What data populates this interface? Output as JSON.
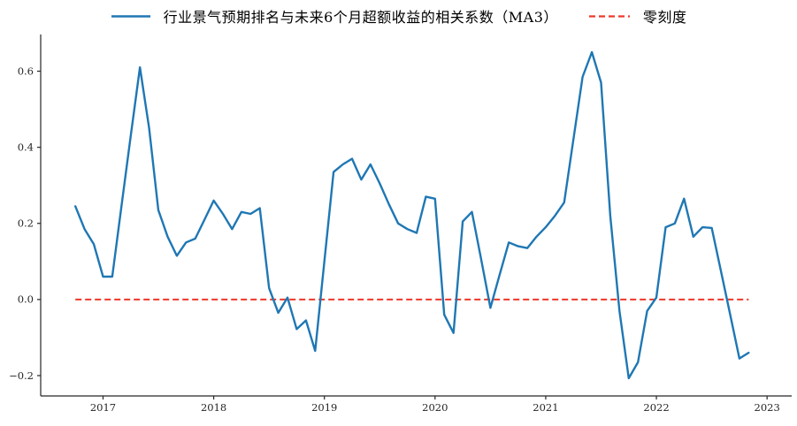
{
  "legend": {
    "series_label": "行业景气预期排名与未来6个月超额收益的相关系数（MA3）",
    "zero_label": "零刻度"
  },
  "chart_data": {
    "type": "line",
    "title": "",
    "xlabel": "",
    "ylabel": "",
    "grid": false,
    "legend_position": "top",
    "x_start": "2016-10",
    "x_end": "2022-11",
    "x_freq": "monthly",
    "axis_color": "#262626",
    "tick_label_color": "#262626",
    "ylim": [
      -0.2535,
      0.6965
    ],
    "xlim_months": [
      -3.76,
      77.67
    ],
    "yticks": [
      {
        "value": -0.2,
        "label": "−0.2"
      },
      {
        "value": 0.0,
        "label": "0.0"
      },
      {
        "value": 0.2,
        "label": "0.2"
      },
      {
        "value": 0.4,
        "label": "0.4"
      },
      {
        "value": 0.6,
        "label": "0.6"
      }
    ],
    "xticks": [
      {
        "month_index": 3,
        "label": "2017"
      },
      {
        "month_index": 15,
        "label": "2018"
      },
      {
        "month_index": 27,
        "label": "2019"
      },
      {
        "month_index": 39,
        "label": "2020"
      },
      {
        "month_index": 51,
        "label": "2021"
      },
      {
        "month_index": 63,
        "label": "2022"
      },
      {
        "month_index": 75,
        "label": "2023"
      }
    ],
    "series": [
      {
        "name": "行业景气预期排名与未来6个月超额收益的相关系数（MA3）",
        "color": "#1f77b4",
        "style": "solid",
        "line_width": 2.4,
        "values": [
          0.245,
          0.185,
          0.145,
          0.06,
          0.06,
          0.245,
          0.43,
          0.61,
          0.45,
          0.235,
          0.165,
          0.115,
          0.15,
          0.16,
          0.21,
          0.26,
          0.225,
          0.185,
          0.23,
          0.225,
          0.24,
          0.03,
          -0.035,
          0.005,
          -0.078,
          -0.055,
          -0.135,
          0.1,
          0.335,
          0.355,
          0.37,
          0.315,
          0.355,
          0.305,
          0.25,
          0.2,
          0.185,
          0.175,
          0.27,
          0.265,
          -0.04,
          -0.088,
          0.205,
          0.23,
          0.105,
          -0.022,
          0.065,
          0.15,
          0.14,
          0.135,
          0.165,
          0.19,
          0.22,
          0.255,
          0.42,
          0.585,
          0.65,
          0.57,
          0.22,
          -0.03,
          -0.207,
          -0.165,
          -0.03,
          0.005,
          0.19,
          0.2,
          0.265,
          0.165,
          0.19,
          0.188,
          0.075,
          -0.04,
          -0.155,
          -0.14
        ]
      },
      {
        "name": "零刻度",
        "color": "#ee382b",
        "style": "dashed",
        "line_width": 2,
        "dash_pattern": "7 4",
        "constant_value": 0,
        "x_range_month_index": [
          0,
          73
        ]
      }
    ]
  }
}
